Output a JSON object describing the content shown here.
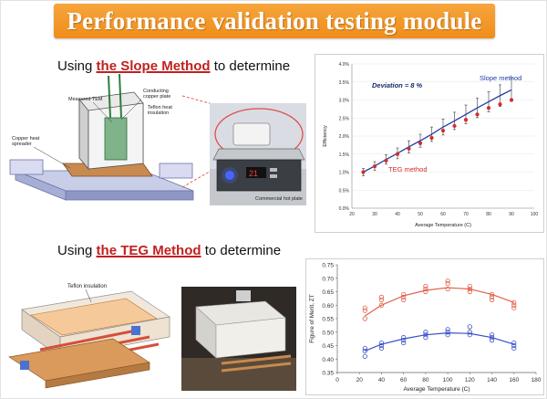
{
  "banner": {
    "title": "Performance validation testing module"
  },
  "section1": {
    "prefix": "Using ",
    "highlight": "the Slope Method",
    "suffix": " to determine"
  },
  "section2": {
    "prefix": "Using ",
    "highlight": "the TEG Method",
    "suffix": " to determine"
  },
  "device1": {
    "labels": {
      "tem": "Measured TEM",
      "conducting": "Conducting copper plate",
      "teflon": "Teflon heat insulation",
      "copper": "Copper heat spreader",
      "hotplate": "Commercial hot plate"
    }
  },
  "device2": {
    "labels": {
      "teflon": "Teflon insulation"
    }
  },
  "colors": {
    "banner": "#f08d1a",
    "highlight": "#c0211f",
    "slope_line": "#1f3fa6",
    "teg_points": "#d62a2a",
    "zt_red": "#e0604a",
    "zt_blue": "#3a4fc4"
  },
  "chart_data": [
    {
      "type": "line",
      "title": "",
      "xlabel": "Average Temperature (C)",
      "ylabel": "Efficiency",
      "xlim": [
        20,
        100
      ],
      "ylim": [
        0.0,
        4.0
      ],
      "xticks": [
        20,
        30,
        40,
        50,
        60,
        70,
        80,
        90,
        100
      ],
      "yticks": [
        "0.0%",
        "0.5%",
        "1.0%",
        "1.5%",
        "2.0%",
        "2.5%",
        "3.0%",
        "3.5%",
        "4.0%"
      ],
      "annotation": "Deviation = 8 %",
      "grid": true,
      "series": [
        {
          "name": "Slope method",
          "style": "line",
          "x": [
            25,
            30,
            35,
            40,
            45,
            50,
            55,
            60,
            65,
            70,
            75,
            80,
            85,
            90
          ],
          "y": [
            1.0,
            1.17,
            1.35,
            1.52,
            1.7,
            1.87,
            2.05,
            2.25,
            2.42,
            2.6,
            2.78,
            2.95,
            3.12,
            3.28
          ],
          "err": [
            0.1,
            0.12,
            0.13,
            0.15,
            0.17,
            0.18,
            0.2,
            0.22,
            0.24,
            0.26,
            0.27,
            0.28,
            0.3,
            0.32
          ]
        },
        {
          "name": "TEG method",
          "style": "points",
          "x": [
            25,
            30,
            35,
            40,
            45,
            50,
            55,
            60,
            65,
            70,
            75,
            80,
            85,
            90
          ],
          "y": [
            1.0,
            1.16,
            1.32,
            1.5,
            1.65,
            1.8,
            1.95,
            2.15,
            2.28,
            2.45,
            2.6,
            2.78,
            2.88,
            3.0
          ]
        }
      ]
    },
    {
      "type": "scatter",
      "title": "",
      "xlabel": "Average Temperature (C)",
      "ylabel": "Figure of Merit, ZT",
      "xlim": [
        0,
        180
      ],
      "ylim": [
        0.35,
        0.75
      ],
      "xticks": [
        0,
        20,
        40,
        60,
        80,
        100,
        120,
        140,
        160,
        180
      ],
      "yticks": [
        "0.35",
        "0.40",
        "0.45",
        "0.50",
        "0.55",
        "0.60",
        "0.65",
        "0.70",
        "0.75"
      ],
      "grid": false,
      "series": [
        {
          "color": "red",
          "points": [
            [
              25,
              0.55
            ],
            [
              25,
              0.58
            ],
            [
              25,
              0.59
            ],
            [
              40,
              0.6
            ],
            [
              40,
              0.62
            ],
            [
              40,
              0.63
            ],
            [
              60,
              0.63
            ],
            [
              60,
              0.64
            ],
            [
              60,
              0.62
            ],
            [
              80,
              0.66
            ],
            [
              80,
              0.67
            ],
            [
              80,
              0.65
            ],
            [
              100,
              0.68
            ],
            [
              100,
              0.69
            ],
            [
              100,
              0.66
            ],
            [
              120,
              0.67
            ],
            [
              120,
              0.66
            ],
            [
              120,
              0.65
            ],
            [
              140,
              0.63
            ],
            [
              140,
              0.64
            ],
            [
              140,
              0.62
            ],
            [
              160,
              0.6
            ],
            [
              160,
              0.59
            ],
            [
              160,
              0.61
            ]
          ],
          "fit": [
            [
              25,
              0.56
            ],
            [
              40,
              0.6
            ],
            [
              60,
              0.635
            ],
            [
              80,
              0.655
            ],
            [
              100,
              0.665
            ],
            [
              120,
              0.66
            ],
            [
              140,
              0.64
            ],
            [
              160,
              0.61
            ]
          ]
        },
        {
          "color": "blue",
          "points": [
            [
              25,
              0.43
            ],
            [
              25,
              0.44
            ],
            [
              25,
              0.41
            ],
            [
              40,
              0.45
            ],
            [
              40,
              0.46
            ],
            [
              40,
              0.44
            ],
            [
              60,
              0.47
            ],
            [
              60,
              0.46
            ],
            [
              60,
              0.48
            ],
            [
              80,
              0.49
            ],
            [
              80,
              0.5
            ],
            [
              80,
              0.48
            ],
            [
              100,
              0.5
            ],
            [
              100,
              0.51
            ],
            [
              100,
              0.49
            ],
            [
              120,
              0.5
            ],
            [
              120,
              0.49
            ],
            [
              120,
              0.52
            ],
            [
              140,
              0.48
            ],
            [
              140,
              0.49
            ],
            [
              140,
              0.47
            ],
            [
              160,
              0.46
            ],
            [
              160,
              0.45
            ],
            [
              160,
              0.44
            ]
          ],
          "fit": [
            [
              25,
              0.43
            ],
            [
              40,
              0.455
            ],
            [
              60,
              0.475
            ],
            [
              80,
              0.49
            ],
            [
              100,
              0.497
            ],
            [
              120,
              0.495
            ],
            [
              140,
              0.48
            ],
            [
              160,
              0.455
            ]
          ]
        }
      ]
    }
  ]
}
